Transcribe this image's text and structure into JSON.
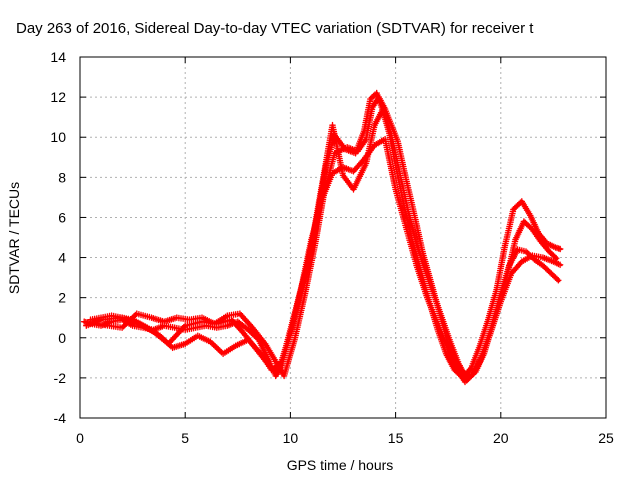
{
  "chart_data": {
    "type": "scatter",
    "title": "Day 263 of 2016, Sidereal Day-to-day VTEC variation (SDTVAR) for receiver t",
    "xlabel": "GPS time / hours",
    "ylabel": "SDTVAR / TECUs",
    "xlim": [
      0,
      25
    ],
    "ylim": [
      -4,
      14
    ],
    "x_ticks": [
      0,
      5,
      10,
      15,
      20,
      25
    ],
    "y_ticks": [
      -4,
      -2,
      0,
      2,
      4,
      6,
      8,
      10,
      12,
      14
    ],
    "x_tick_labels": [
      "0",
      "5",
      "10",
      "15",
      "20",
      "25"
    ],
    "y_tick_labels": [
      "-4",
      "-2",
      "0",
      "2",
      "4",
      "6",
      "8",
      "10",
      "12",
      "14"
    ],
    "grid": true,
    "legend": "none",
    "marker": "plus",
    "series": [
      {
        "color": "#ff0000",
        "x": [
          0.2,
          0.5,
          1,
          1.5,
          2,
          2.5,
          3,
          3.5,
          4,
          4.5,
          5,
          5.5,
          6,
          6.5,
          7,
          7.5,
          8,
          8.5,
          9,
          9.3,
          9.6,
          10,
          10.5,
          11,
          11.5,
          12,
          12.5,
          13,
          13.5,
          14,
          14.5,
          15,
          15.5,
          16,
          16.5,
          17,
          17.5,
          18,
          18.3,
          18.6,
          19,
          19.5,
          20,
          20.5,
          21,
          21.5,
          22,
          22.5,
          22.9
        ],
        "y": [
          0.8,
          0.7,
          0.6,
          0.8,
          0.9,
          0.6,
          0.5,
          0.4,
          0.6,
          0.5,
          0.4,
          0.5,
          0.6,
          0.5,
          0.6,
          0.8,
          0.4,
          -0.1,
          -1.2,
          -1.9,
          -1.3,
          0.2,
          2.4,
          4.9,
          6.9,
          8.2,
          8.5,
          8.3,
          8.9,
          9.6,
          9.9,
          7.4,
          5.5,
          3.6,
          2.0,
          0.7,
          -0.6,
          -1.7,
          -2.2,
          -1.9,
          -1.2,
          0.2,
          1.8,
          3.2,
          3.8,
          4.1,
          4.0,
          3.8,
          3.6
        ]
      },
      {
        "color": "#ff0000",
        "x": [
          0.3,
          1,
          2,
          2.8,
          3.5,
          4.2,
          5,
          5.8,
          6.5,
          7.2,
          7.8,
          8.4,
          9,
          9.4,
          9.8,
          10.3,
          10.8,
          11.3,
          11.7,
          12.1,
          12.6,
          13.1,
          13.5,
          13.8,
          14.1,
          14.4,
          14.7,
          15,
          15.4,
          15.8,
          16.2,
          16.6,
          17,
          17.4,
          17.8,
          18.2,
          18.6,
          19,
          19.4,
          19.8,
          20.2,
          20.6,
          21,
          21.4,
          21.8,
          22.2,
          22.6,
          22.9
        ],
        "y": [
          0.6,
          0.9,
          1.0,
          0.7,
          0.3,
          -0.3,
          0.6,
          0.8,
          0.7,
          0.9,
          0.2,
          -0.6,
          -1.4,
          -1.8,
          -0.4,
          1.6,
          3.6,
          6.2,
          8.6,
          10.1,
          9.4,
          9.2,
          10.3,
          11.9,
          12.2,
          11.3,
          10.2,
          8.6,
          6.6,
          4.8,
          3.3,
          1.8,
          0.4,
          -0.8,
          -1.6,
          -2.0,
          -1.5,
          -0.4,
          0.9,
          2.4,
          4.6,
          6.4,
          6.8,
          6.1,
          5.2,
          4.7,
          4.5,
          4.4
        ]
      },
      {
        "color": "#ff0000",
        "x": [
          0.5,
          1.5,
          2.5,
          3.2,
          3.8,
          4.4,
          5,
          5.6,
          6.2,
          6.8,
          7.4,
          8,
          8.6,
          9.1,
          9.6,
          10.1,
          10.6,
          11.1,
          11.5,
          12,
          12.5,
          13,
          13.6,
          14,
          14.4,
          14.8,
          15.2,
          15.6,
          16,
          16.4,
          16.8,
          17.2,
          17.6,
          18,
          18.4,
          18.8,
          19.2,
          19.6,
          20,
          20.4,
          20.8,
          21.2,
          21.6,
          22,
          22.4,
          22.8
        ],
        "y": [
          0.9,
          1.1,
          0.9,
          0.5,
          0.1,
          -0.5,
          -0.3,
          0.1,
          -0.2,
          -0.8,
          -0.4,
          -0.1,
          -0.8,
          -1.6,
          -1.2,
          0.5,
          2.7,
          5.2,
          7.6,
          10.6,
          8.1,
          7.4,
          8.7,
          10.6,
          11.4,
          10.1,
          8.2,
          6.3,
          4.7,
          3.4,
          2.2,
          1.0,
          -0.2,
          -1.3,
          -2.1,
          -1.7,
          -0.8,
          0.6,
          2.2,
          3.6,
          4.4,
          4.3,
          3.9,
          3.6,
          3.2,
          2.8
        ]
      },
      {
        "color": "#ff0000",
        "x": [
          0.8,
          2,
          2.7,
          3.4,
          4,
          4.6,
          5.2,
          5.8,
          6.4,
          7,
          7.6,
          8.2,
          8.8,
          9.2,
          9.7,
          10.2,
          10.7,
          11.2,
          11.6,
          12.1,
          12.7,
          13.2,
          13.6,
          13.9,
          14.2,
          14.5,
          14.8,
          15.1,
          15.5,
          15.9,
          16.3,
          16.7,
          17.1,
          17.5,
          17.9,
          18.3,
          18.7,
          19.1,
          19.5,
          19.9,
          20.3,
          20.7,
          21.1,
          21.5,
          21.9,
          22.3,
          22.7
        ],
        "y": [
          0.7,
          0.5,
          1.2,
          1.0,
          0.8,
          1.0,
          0.9,
          1.0,
          0.7,
          1.1,
          1.2,
          0.5,
          -0.3,
          -1.0,
          -1.9,
          -0.1,
          2.2,
          4.8,
          7.2,
          9.2,
          9.5,
          9.3,
          9.9,
          11.5,
          12.0,
          11.4,
          10.6,
          9.8,
          7.9,
          6.1,
          4.2,
          2.7,
          1.2,
          -0.3,
          -1.2,
          -1.9,
          -1.8,
          -0.9,
          0.3,
          1.8,
          3.1,
          4.9,
          5.8,
          5.4,
          4.8,
          4.3,
          3.9
        ]
      }
    ]
  }
}
